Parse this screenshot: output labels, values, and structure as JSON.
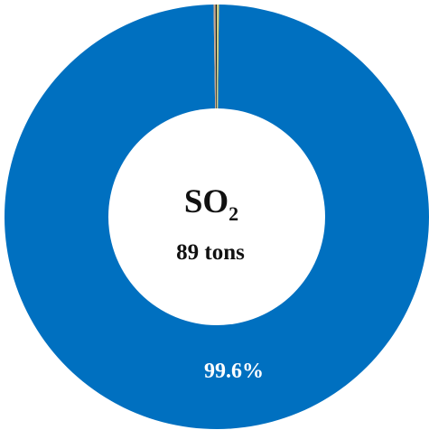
{
  "chart_data": {
    "type": "pie",
    "variant": "donut",
    "center_title": "SO",
    "center_title_subscript": "2",
    "center_value": "89 tons",
    "slices": [
      {
        "value": 99.6,
        "label": "99.6%",
        "color": "#0070C0"
      },
      {
        "value": 0.15,
        "label": "",
        "color": "#C9A78E"
      },
      {
        "value": 0.1,
        "label": "",
        "color": "#1F1F1F"
      },
      {
        "value": 0.08,
        "label": "",
        "color": "#A9D18E"
      },
      {
        "value": 0.07,
        "label": "",
        "color": "#F2C14E"
      }
    ],
    "legend": false
  }
}
